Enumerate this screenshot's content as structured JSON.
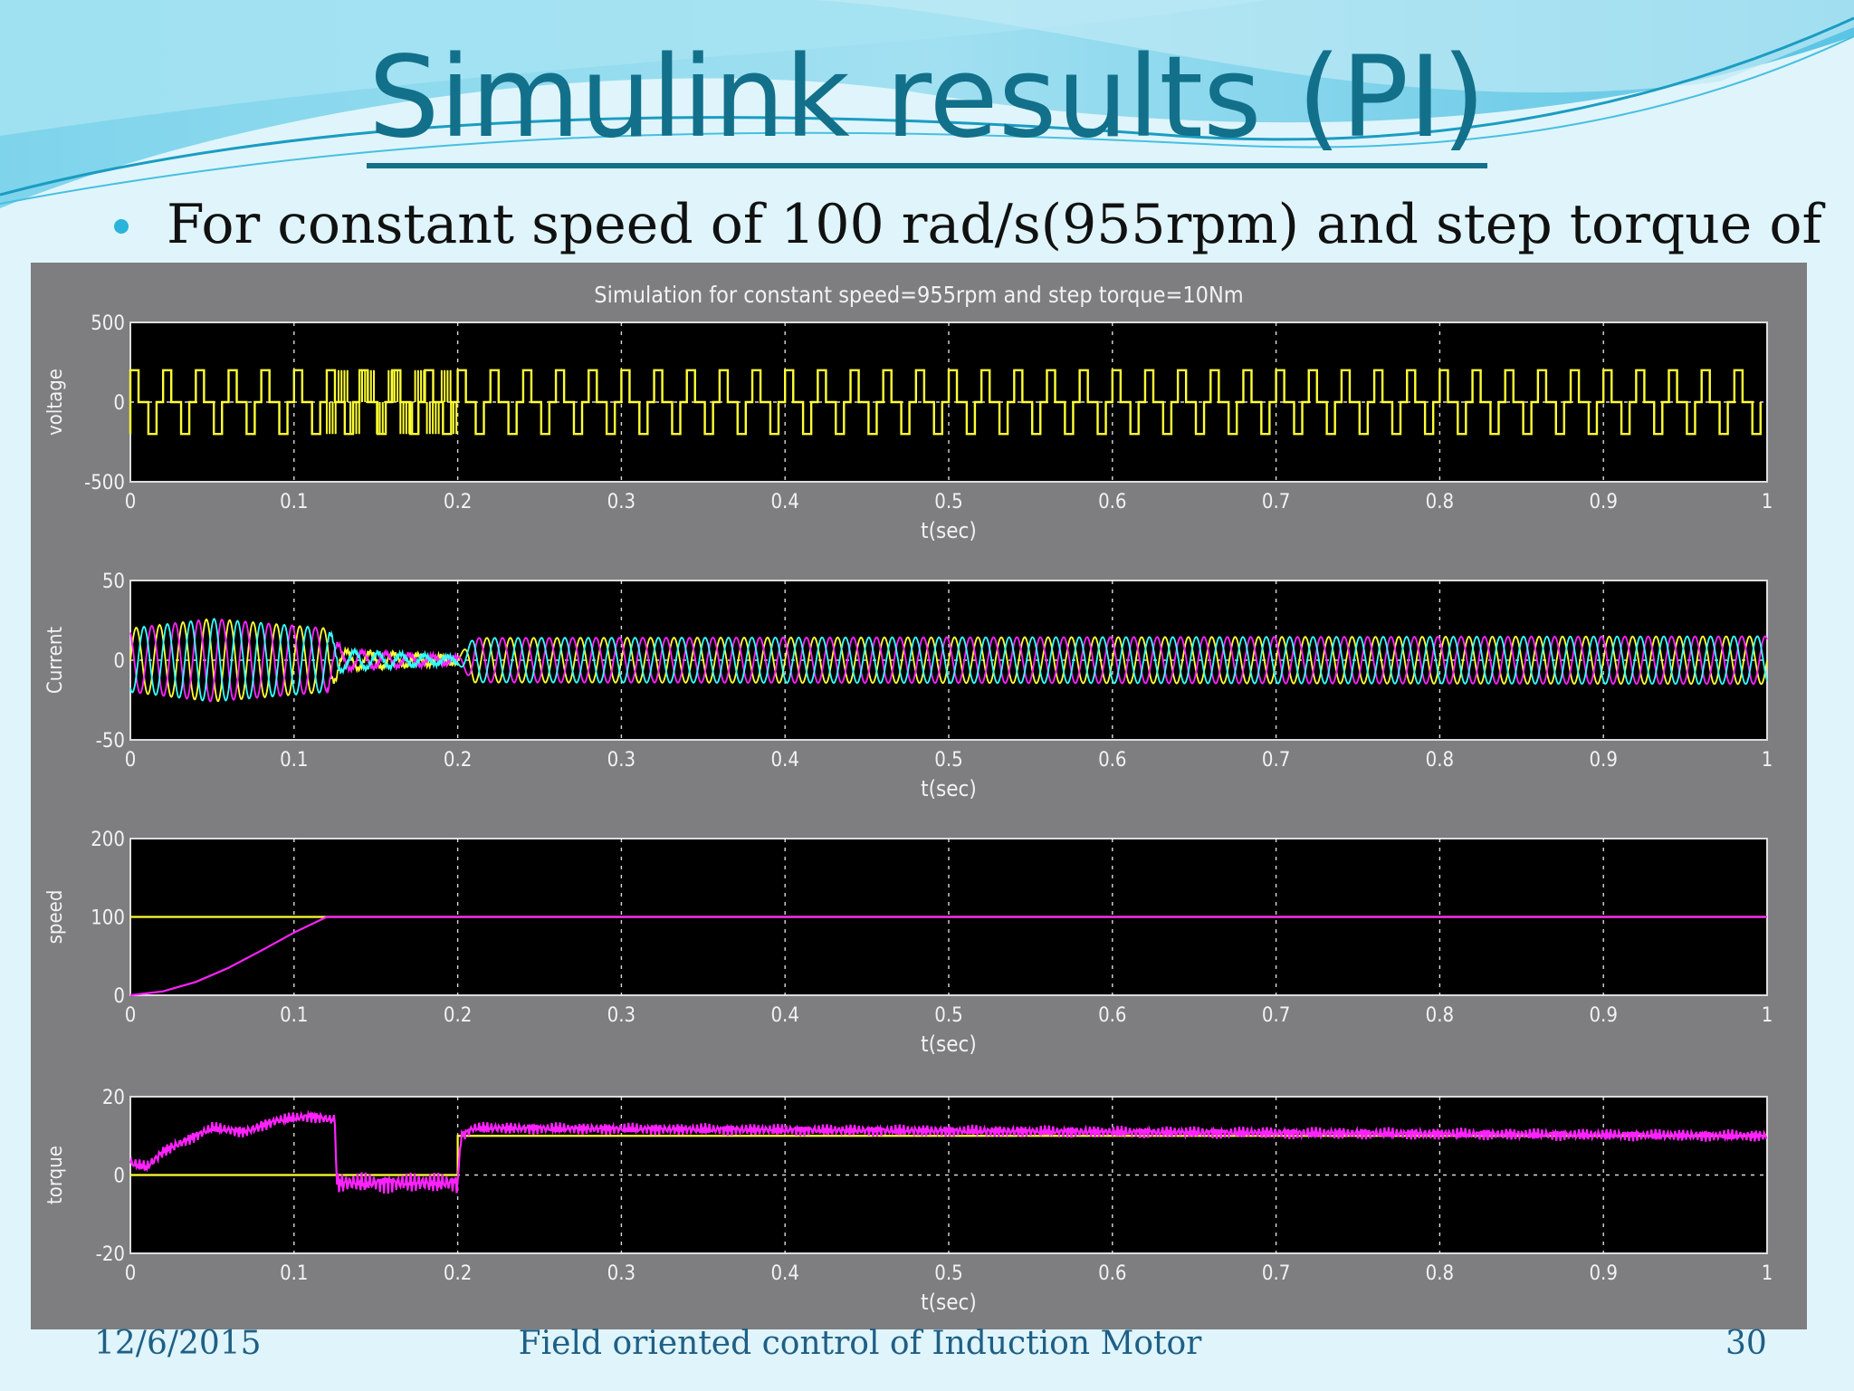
{
  "slide": {
    "title": "Simulink results (PI)",
    "bullet": "For constant speed of 100 rad/s(955rpm) and step torque of",
    "footer_date": "12/6/2015",
    "footer_title": "Field oriented control of Induction Motor",
    "page_number": "30"
  },
  "colors": {
    "title": "#12708a",
    "bullet": "#2bb3dc",
    "scope_bg": "#7e7d80",
    "axes_bg": "#000000",
    "trace_yellow": "#ffff33",
    "trace_magenta": "#ff22ff",
    "trace_cyan": "#33ffff"
  },
  "chart_data": {
    "title": "Simulation for constant speed=955rpm and step torque=10Nm",
    "grid": true,
    "x_ticks": [
      0,
      0.1,
      0.2,
      0.3,
      0.4,
      0.5,
      0.6,
      0.7,
      0.8,
      0.9,
      1
    ],
    "subplots": [
      {
        "type": "line",
        "ylabel": "voltage",
        "xlabel": "t(sec)",
        "xlim": [
          0,
          1
        ],
        "ylim": [
          -500,
          500
        ],
        "yticks": [
          500,
          0,
          -500
        ],
        "series": [
          {
            "color": "#ffff33",
            "kind": "pwm",
            "levels": [
              -200,
              0,
              200
            ],
            "period": 0.02,
            "dense_region": [
              0.12,
              0.2
            ]
          }
        ]
      },
      {
        "type": "line",
        "ylabel": "Current",
        "xlabel": "t(sec)",
        "xlim": [
          0,
          1
        ],
        "ylim": [
          -50,
          50
        ],
        "yticks": [
          50,
          0,
          -50
        ],
        "series": [
          {
            "color": "#ffff33",
            "kind": "sine3",
            "phase_deg": 0
          },
          {
            "color": "#ff22ff",
            "kind": "sine3",
            "phase_deg": 120
          },
          {
            "color": "#33ffff",
            "kind": "sine3",
            "phase_deg": 240
          }
        ],
        "envelope": {
          "x": [
            0,
            0.05,
            0.12,
            0.13,
            0.2,
            0.21,
            1
          ],
          "y": [
            20,
            26,
            20,
            6,
            2,
            14,
            15
          ]
        },
        "frequency_hz": 70
      },
      {
        "type": "line",
        "ylabel": "speed",
        "xlabel": "t(sec)",
        "xlim": [
          0,
          1
        ],
        "ylim": [
          0,
          200
        ],
        "yticks": [
          200,
          100,
          0
        ],
        "series": [
          {
            "color": "#ffff33",
            "x": [
              0,
              1
            ],
            "y": [
              100,
              100
            ]
          },
          {
            "color": "#ff22ff",
            "x": [
              0,
              0.02,
              0.04,
              0.06,
              0.08,
              0.1,
              0.12,
              1
            ],
            "y": [
              0,
              5,
              17,
              35,
              57,
              80,
              100,
              100
            ]
          }
        ]
      },
      {
        "type": "line",
        "ylabel": "torque",
        "xlabel": "t(sec)",
        "xlim": [
          0,
          1
        ],
        "ylim": [
          -20,
          20
        ],
        "yticks": [
          20,
          0,
          -20
        ],
        "series": [
          {
            "color": "#ffff33",
            "x": [
              0,
              0.2,
              0.2,
              1
            ],
            "y": [
              0,
              0,
              10,
              10
            ]
          },
          {
            "color": "#ff22ff",
            "x": [
              0,
              0.01,
              0.02,
              0.03,
              0.05,
              0.07,
              0.09,
              0.11,
              0.125,
              0.126,
              0.2,
              0.202,
              0.21,
              1
            ],
            "y": [
              3,
              2,
              6,
              8,
              12,
              11,
              14,
              15,
              14,
              -2,
              -2,
              10,
              12,
              10
            ]
          }
        ]
      }
    ]
  }
}
